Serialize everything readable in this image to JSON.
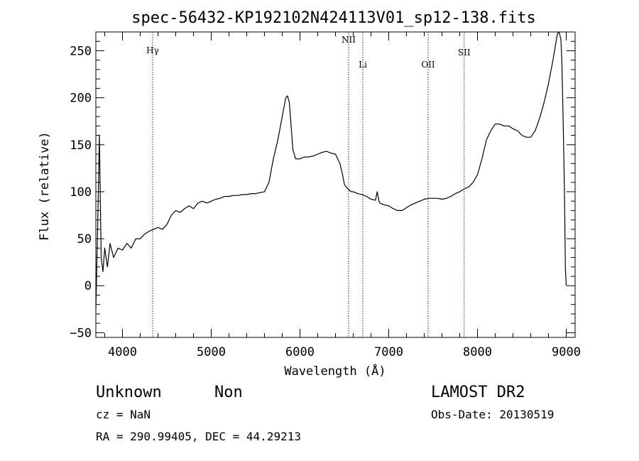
{
  "chart_data": {
    "type": "line",
    "title": "spec-56432-KP192102N424113V01_sp12-138.fits",
    "xlabel": "Wavelength (Å)",
    "ylabel": "Flux (relative)",
    "xlim": [
      3700,
      9100
    ],
    "ylim": [
      -55,
      270
    ],
    "xticks": [
      4000,
      5000,
      6000,
      7000,
      8000,
      9000
    ],
    "yticks": [
      -50,
      0,
      50,
      100,
      150,
      200,
      250
    ],
    "grid": false,
    "series": [
      {
        "x": [
          3700,
          3720,
          3740,
          3760,
          3780,
          3800,
          3830,
          3860,
          3900,
          3950,
          4000,
          4050,
          4100,
          4150,
          4200,
          4250,
          4300,
          4350,
          4400,
          4450,
          4500,
          4550,
          4600,
          4650,
          4700,
          4750,
          4800,
          4850,
          4900,
          4950,
          5000,
          5050,
          5100,
          5150,
          5200,
          5250,
          5300,
          5350,
          5400,
          5450,
          5500,
          5550,
          5600,
          5650,
          5700,
          5750,
          5780,
          5800,
          5820,
          5840,
          5860,
          5880,
          5900,
          5920,
          5950,
          6000,
          6050,
          6100,
          6150,
          6200,
          6250,
          6300,
          6350,
          6400,
          6450,
          6480,
          6500,
          6520,
          6550,
          6580,
          6600,
          6650,
          6700,
          6750,
          6800,
          6850,
          6870,
          6880,
          6890,
          6900,
          6950,
          7000,
          7050,
          7100,
          7150,
          7200,
          7250,
          7300,
          7350,
          7400,
          7450,
          7500,
          7550,
          7600,
          7650,
          7700,
          7750,
          7800,
          7850,
          7900,
          7950,
          8000,
          8050,
          8100,
          8150,
          8200,
          8250,
          8300,
          8350,
          8400,
          8450,
          8500,
          8550,
          8600,
          8650,
          8700,
          8750,
          8800,
          8850,
          8900,
          8920,
          8940,
          8950,
          8960,
          8970,
          8980,
          8990,
          9000
        ],
        "y": [
          -25,
          60,
          160,
          30,
          15,
          40,
          20,
          45,
          30,
          40,
          38,
          45,
          40,
          50,
          50,
          55,
          58,
          60,
          62,
          60,
          65,
          75,
          80,
          78,
          82,
          85,
          82,
          88,
          90,
          88,
          90,
          92,
          93,
          95,
          95,
          96,
          96,
          97,
          97,
          98,
          98,
          99,
          100,
          110,
          135,
          155,
          170,
          180,
          190,
          200,
          202,
          195,
          170,
          145,
          135,
          135,
          137,
          137,
          138,
          140,
          142,
          143,
          141,
          140,
          130,
          118,
          108,
          105,
          102,
          100,
          100,
          98,
          97,
          95,
          92,
          91,
          100,
          95,
          90,
          88,
          86,
          85,
          82,
          80,
          80,
          83,
          86,
          88,
          90,
          92,
          93,
          93,
          93,
          92,
          93,
          95,
          98,
          100,
          103,
          105,
          110,
          118,
          135,
          155,
          165,
          172,
          172,
          170,
          170,
          167,
          165,
          160,
          158,
          158,
          165,
          178,
          195,
          215,
          240,
          268,
          270,
          262,
          240,
          200,
          150,
          100,
          20,
          0
        ],
        "label": ""
      }
    ],
    "lines": [
      {
        "label": "Hγ",
        "x": 4340
      },
      {
        "label": "NII",
        "x": 6548
      },
      {
        "label": "Li",
        "x": 6708
      },
      {
        "label": "OII",
        "x": 7444
      },
      {
        "label": "SII",
        "x": 7850
      }
    ]
  },
  "footer": {
    "class_label": "Unknown",
    "subclass_label": "Non",
    "survey": "LAMOST DR2",
    "cz": "cz = NaN",
    "obs_date": "Obs-Date: 20130519",
    "coords": "RA = 290.99405, DEC =  44.29213"
  }
}
